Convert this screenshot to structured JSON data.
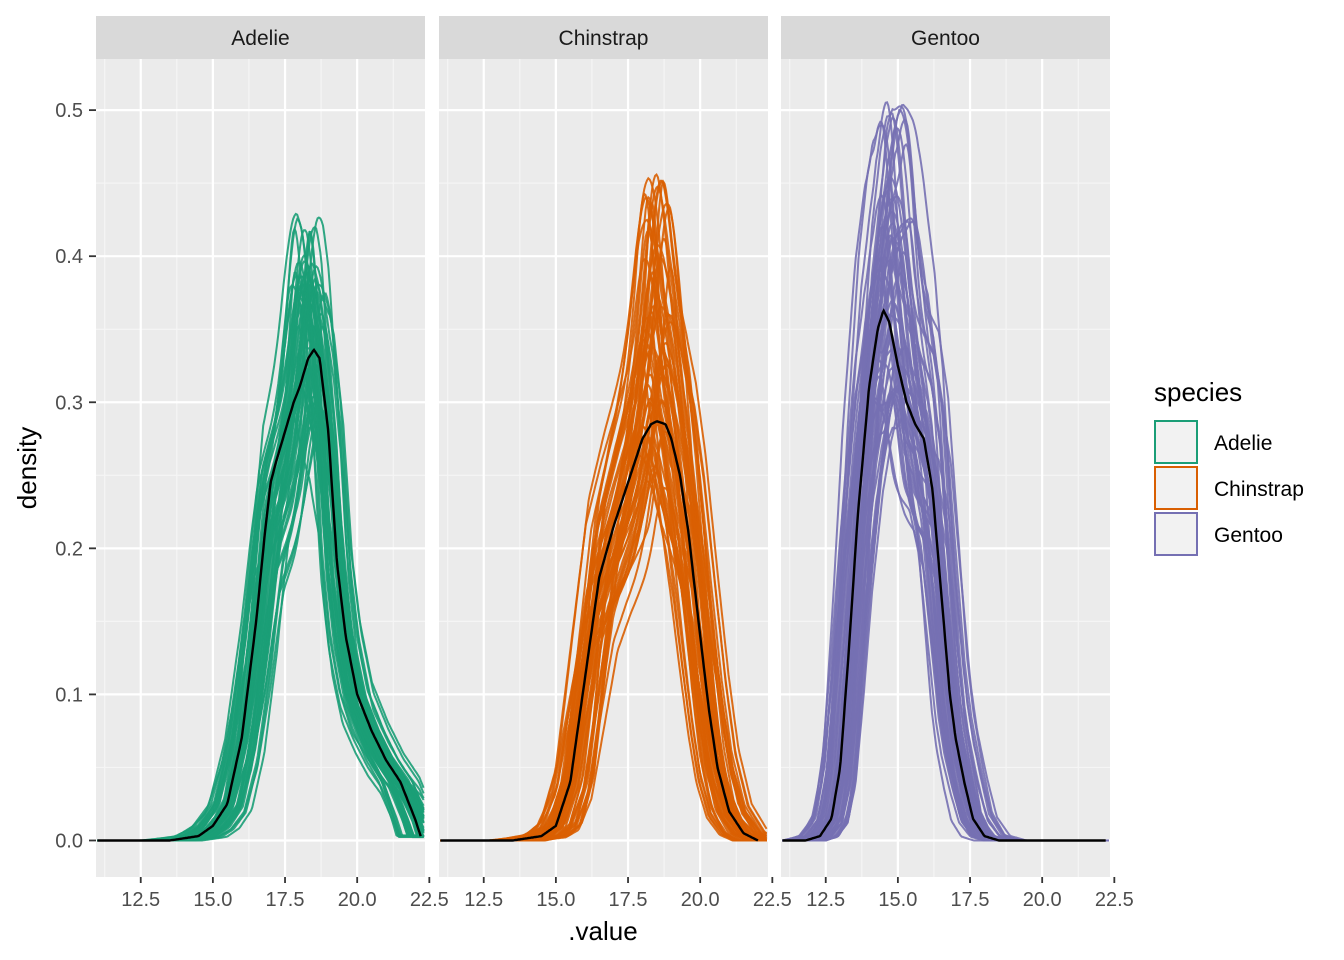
{
  "chart_data": {
    "type": "line",
    "subtype": "faceted density overlay (posterior predictive check)",
    "facets": [
      "Adelie",
      "Chinstrap",
      "Gentoo"
    ],
    "xlabel": ".value",
    "ylabel": "density",
    "xlim": [
      10.95,
      22.35
    ],
    "ylim": [
      -0.025,
      0.535
    ],
    "x_ticks": [
      12.5,
      15.0,
      17.5,
      20.0,
      22.5
    ],
    "x_tick_labels": [
      "12.5",
      "15.0",
      "17.5",
      "20.0",
      "22.5"
    ],
    "y_ticks": [
      0.0,
      0.1,
      0.2,
      0.3,
      0.4,
      0.5
    ],
    "y_tick_labels": [
      "0.0",
      "0.1",
      "0.2",
      "0.3",
      "0.4",
      "0.5"
    ],
    "grid": true,
    "legend": {
      "title": "species",
      "position": "right",
      "entries": [
        {
          "label": "Adelie",
          "color": "#1b9e77"
        },
        {
          "label": "Chinstrap",
          "color": "#d95f02"
        },
        {
          "label": "Gentoo",
          "color": "#7570b3"
        }
      ]
    },
    "panels": [
      {
        "facet": "Adelie",
        "color": "#1b9e77",
        "n_draws": 60,
        "draw_peak_range": [
          0.28,
          0.43
        ],
        "observed_line": {
          "x": [
            11.0,
            13.5,
            14.5,
            15.0,
            15.5,
            16.0,
            16.5,
            16.8,
            17.0,
            17.2,
            17.5,
            17.8,
            18.0,
            18.3,
            18.5,
            18.7,
            19.0,
            19.3,
            19.6,
            20.0,
            20.5,
            21.0,
            21.5,
            22.0,
            22.2
          ],
          "y": [
            0.0,
            0.0,
            0.003,
            0.01,
            0.025,
            0.07,
            0.15,
            0.21,
            0.245,
            0.26,
            0.28,
            0.3,
            0.31,
            0.33,
            0.336,
            0.33,
            0.28,
            0.19,
            0.14,
            0.1,
            0.075,
            0.055,
            0.04,
            0.015,
            0.003
          ]
        }
      },
      {
        "facet": "Chinstrap",
        "color": "#d95f02",
        "n_draws": 60,
        "draw_peak_range": [
          0.24,
          0.46
        ],
        "observed_line": {
          "x": [
            11.0,
            13.5,
            14.5,
            15.0,
            15.5,
            16.0,
            16.5,
            17.0,
            17.5,
            18.0,
            18.3,
            18.5,
            18.8,
            19.0,
            19.3,
            19.6,
            20.0,
            20.3,
            20.6,
            21.0,
            21.5,
            22.0
          ],
          "y": [
            0.0,
            0.0,
            0.003,
            0.01,
            0.04,
            0.11,
            0.18,
            0.215,
            0.245,
            0.275,
            0.285,
            0.287,
            0.285,
            0.275,
            0.25,
            0.21,
            0.14,
            0.09,
            0.05,
            0.02,
            0.005,
            0.0
          ]
        }
      },
      {
        "facet": "Gentoo",
        "color": "#7570b3",
        "n_draws": 60,
        "draw_peak_range": [
          0.3,
          0.51
        ],
        "observed_line": {
          "x": [
            11.0,
            11.8,
            12.3,
            12.7,
            13.0,
            13.3,
            13.6,
            14.0,
            14.3,
            14.5,
            14.7,
            15.0,
            15.3,
            15.6,
            15.9,
            16.2,
            16.5,
            16.8,
            17.0,
            17.3,
            17.6,
            18.0,
            18.5,
            19.0,
            20.0,
            22.2
          ],
          "y": [
            0.0,
            0.0,
            0.003,
            0.015,
            0.05,
            0.13,
            0.22,
            0.31,
            0.35,
            0.363,
            0.355,
            0.325,
            0.3,
            0.285,
            0.275,
            0.24,
            0.17,
            0.1,
            0.07,
            0.04,
            0.015,
            0.003,
            0.0,
            0.0,
            0.0,
            0.0
          ]
        }
      }
    ]
  }
}
